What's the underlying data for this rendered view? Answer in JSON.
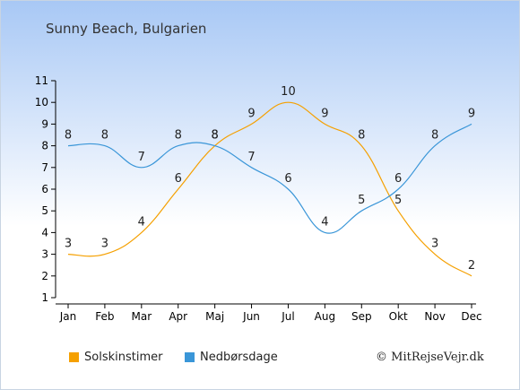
{
  "title": "Sunny Beach, Bulgarien",
  "copyright": "© MitRejseVejr.dk",
  "colors": {
    "series1": "#f5a000",
    "series2": "#3a96d8"
  },
  "chart_data": {
    "type": "line",
    "categories": [
      "Jan",
      "Feb",
      "Mar",
      "Apr",
      "Maj",
      "Jun",
      "Jul",
      "Aug",
      "Sep",
      "Okt",
      "Nov",
      "Dec"
    ],
    "series": [
      {
        "name": "Solskinstimer",
        "values": [
          3,
          3,
          4,
          6,
          8,
          9,
          10,
          9,
          8,
          5,
          3,
          2
        ]
      },
      {
        "name": "Nedbørsdage",
        "values": [
          8,
          8,
          7,
          8,
          8,
          7,
          6,
          4,
          5,
          6,
          8,
          9
        ]
      }
    ],
    "yticks": [
      1,
      2,
      3,
      4,
      5,
      6,
      7,
      8,
      9,
      10,
      11
    ],
    "ylim": [
      1,
      11
    ],
    "grid": false,
    "legend": "bottom-left"
  }
}
